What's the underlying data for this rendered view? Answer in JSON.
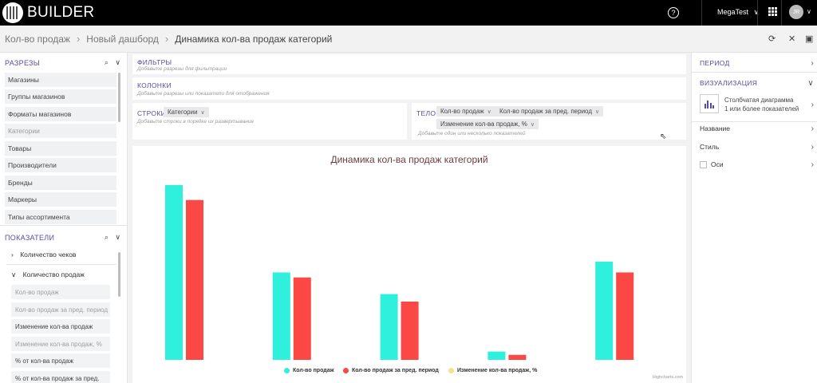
{
  "app": {
    "name": "BUILDER"
  },
  "topbar": {
    "help_icon": "help-circle-icon",
    "user": "MegaTest",
    "user_caret": "∨",
    "avatar_initials": "JR"
  },
  "breadcrumb": {
    "items": [
      "Кол-во продаж",
      "Новый дашборд"
    ],
    "current": "Динамика кол-ва продаж категорий",
    "actions": [
      "refresh-icon",
      "close-icon",
      "save-icon"
    ]
  },
  "sidebar": {
    "dimensions_title": "РАЗРЕЗЫ",
    "dimensions": [
      {
        "label": "Магазины",
        "dim": false
      },
      {
        "label": "Группы магазинов",
        "dim": false
      },
      {
        "label": "Форматы магазинов",
        "dim": false
      },
      {
        "label": "Категории",
        "dim": true
      },
      {
        "label": "Товары",
        "dim": false
      },
      {
        "label": "Производители",
        "dim": false
      },
      {
        "label": "Бренды",
        "dim": false
      },
      {
        "label": "Маркеры",
        "dim": false
      },
      {
        "label": "Типы ассортимента",
        "dim": false
      }
    ],
    "metrics_title": "ПОКАЗАТЕЛИ",
    "metric_groups": [
      {
        "label": "Количество чеков",
        "expanded": false
      },
      {
        "label": "Количество продаж",
        "expanded": true
      }
    ],
    "metrics": [
      {
        "label": "Кол-во продаж",
        "dim": true
      },
      {
        "label": "Кол-во продаж за пред. период",
        "dim": true
      },
      {
        "label": "Изменение кол-ва продаж",
        "dim": false
      },
      {
        "label": "Изменение кол-ва продаж, %",
        "dim": true
      },
      {
        "label": "% от кол-ва продаж",
        "dim": false
      },
      {
        "label": "% от кол-ва продаж за пред.",
        "dim": false
      }
    ]
  },
  "filters": {
    "title": "ФИЛЬТРЫ",
    "hint": "Добавьте разрезы для фильтрации"
  },
  "columns": {
    "title": "КОЛОНКИ",
    "hint": "Добавьте разрезы или показатели для отображения"
  },
  "rows": {
    "title": "СТРОКИ",
    "chip": "Категории",
    "hint": "Добавьте строки в порядке их развертывания"
  },
  "body": {
    "title": "ТЕЛО",
    "chips": [
      "Кол-во продаж",
      "Кол-во продаж за пред. период",
      "Изменение кол-ва продаж, %"
    ],
    "hint": "Добавьте один или несколько показателей"
  },
  "chart_data": {
    "type": "bar",
    "title": "Динамика кол-ва продаж категорий",
    "categories": [
      "",
      "",
      "",
      "",
      ""
    ],
    "series": [
      {
        "name": "Кол-во продаж",
        "color": "#2ff0dc",
        "values": [
          210,
          105,
          79,
          10,
          118
        ]
      },
      {
        "name": "Кол-во продаж за пред. период",
        "color": "#fb4844",
        "values": [
          192,
          99,
          70,
          6,
          105
        ]
      },
      {
        "name": "Изменение кол-ва продаж, %",
        "color": "#f5e28b",
        "values": [
          0,
          0,
          0,
          0,
          0
        ]
      }
    ],
    "ylim": [
      0,
      230
    ],
    "grid": false,
    "legend": "bottom",
    "credits": "Highcharts.com"
  },
  "right_panel": {
    "period": "ПЕРИОД",
    "visualization": "ВИЗУАЛИЗАЦИЯ",
    "viz_type": "Столбчатая диаграмма",
    "viz_desc": "1 или более показателей",
    "name_label": "Название",
    "style_label": "Стиль",
    "axes_label": "Оси"
  }
}
